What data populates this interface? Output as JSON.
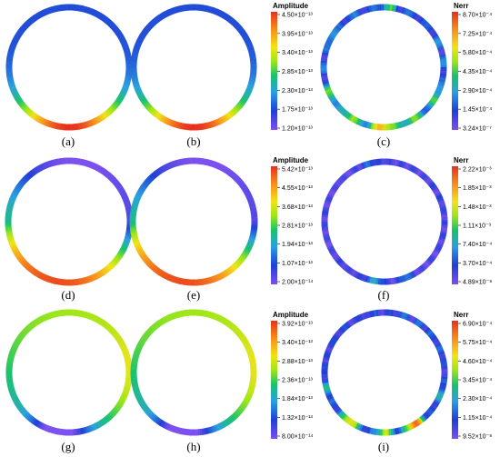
{
  "panels": [
    {
      "label": "(a)",
      "type": "amplitude",
      "colorbar": 0
    },
    {
      "label": "(b)",
      "type": "amplitude",
      "colorbar": 0
    },
    {
      "label": "(c)",
      "type": "error",
      "colorbar": 1
    },
    {
      "label": "(d)",
      "type": "amplitude",
      "colorbar": 2
    },
    {
      "label": "(e)",
      "type": "amplitude",
      "colorbar": 2
    },
    {
      "label": "(f)",
      "type": "error",
      "colorbar": 3
    },
    {
      "label": "(g)",
      "type": "amplitude",
      "colorbar": 4
    },
    {
      "label": "(h)",
      "type": "amplitude",
      "colorbar": 4
    },
    {
      "label": "(i)",
      "type": "error",
      "colorbar": 5
    }
  ],
  "colorbars": [
    {
      "title": "Amplitude",
      "ticks": [
        "4.50×10⁻¹³",
        "3.95×10⁻¹³",
        "3.40×10⁻¹³",
        "2.85×10⁻¹³",
        "2.30×10⁻¹³",
        "1.75×10⁻¹³",
        "1.20×10⁻¹³"
      ]
    },
    {
      "title": "Nerr",
      "ticks": [
        "8.70×10⁻⁴",
        "7.25×10⁻⁴",
        "5.80×10⁻⁴",
        "4.35×10⁻⁴",
        "2.90×10⁻⁴",
        "1.45×10⁻⁴",
        "3.24×10⁻⁷"
      ]
    },
    {
      "title": "Amplitude",
      "ticks": [
        "5.42×10⁻¹³",
        "4.55×10⁻¹³",
        "3.68×10⁻¹³",
        "2.81×10⁻¹³",
        "1.94×10⁻¹³",
        "1.07×10⁻¹³",
        "2.00×10⁻¹⁴"
      ]
    },
    {
      "title": "Nerr",
      "ticks": [
        "2.22×10⁻³",
        "1.85×10⁻³",
        "1.48×10⁻³",
        "1.11×10⁻³",
        "7.40×10⁻⁴",
        "3.70×10⁻⁴",
        "4.89×10⁻⁸"
      ]
    },
    {
      "title": "Amplitude",
      "ticks": [
        "3.92×10⁻¹³",
        "3.40×10⁻¹³",
        "2.88×10⁻¹³",
        "2.36×10⁻¹³",
        "1.84×10⁻¹³",
        "1.32×10⁻¹³",
        "8.00×10⁻¹⁴"
      ]
    },
    {
      "title": "Nerr",
      "ticks": [
        "6.90×10⁻⁴",
        "5.75×10⁻⁴",
        "4.60×10⁻⁴",
        "3.45×10⁻⁴",
        "2.30×10⁻⁴",
        "1.15×10⁻⁴",
        "9.52×10⁻⁸"
      ]
    }
  ],
  "colormap": [
    "#7b4ff0",
    "#1f3fd6",
    "#2aa0e0",
    "#19c36a",
    "#9ce617",
    "#f2e318",
    "#f7941d",
    "#e8301c"
  ]
}
